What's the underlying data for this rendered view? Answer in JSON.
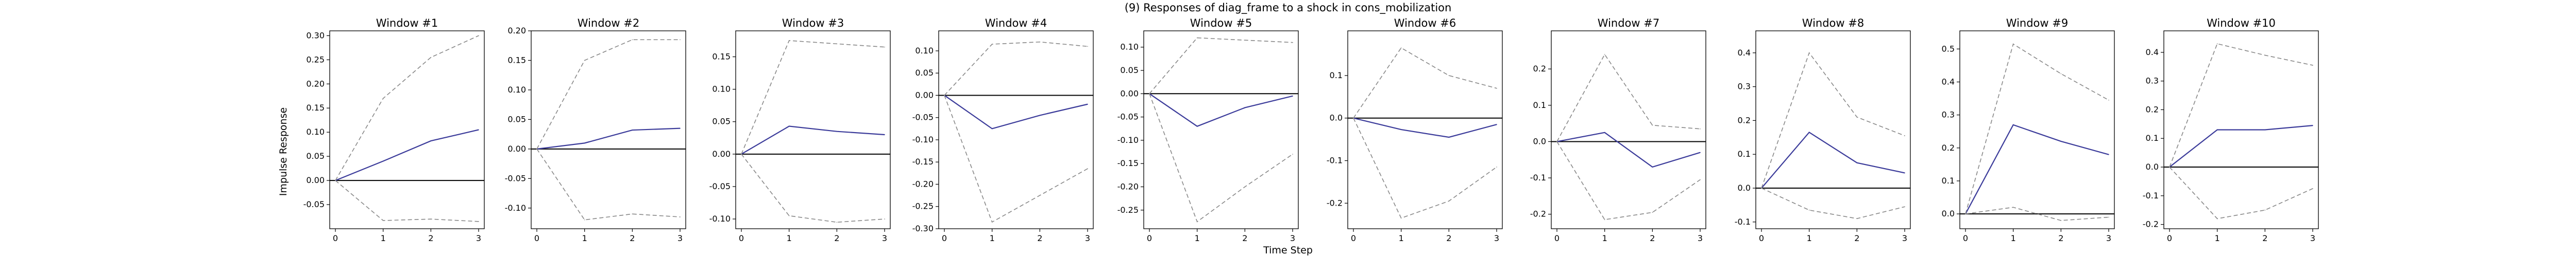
{
  "figure": {
    "title": "(9) Responses of diag_frame to a shock in cons_mobilization",
    "xlabel": "Time Step",
    "ylabel": "Impulse Response"
  },
  "colors": {
    "response": "#3b3b9a",
    "bands": "#888888",
    "zero_line": "#000000",
    "frame": "#000000"
  },
  "chart_data": [
    {
      "type": "line",
      "title": "Window #1",
      "x": [
        0,
        1,
        2,
        3
      ],
      "ylim": [
        -0.1,
        0.31
      ],
      "yticks": [
        "-0.05",
        "0.00",
        "0.05",
        "0.10",
        "0.15",
        "0.20",
        "0.25",
        "0.30"
      ],
      "series": [
        {
          "role": "response",
          "values": [
            0.0,
            0.04,
            0.082,
            0.105
          ]
        },
        {
          "role": "upper",
          "values": [
            0.0,
            0.17,
            0.255,
            0.3
          ]
        },
        {
          "role": "lower",
          "values": [
            0.0,
            -0.083,
            -0.08,
            -0.085
          ]
        }
      ]
    },
    {
      "type": "line",
      "title": "Window #2",
      "x": [
        0,
        1,
        2,
        3
      ],
      "ylim": [
        -0.135,
        0.2
      ],
      "yticks": [
        "-0.10",
        "-0.05",
        "0.00",
        "0.05",
        "0.10",
        "0.15",
        "0.20"
      ],
      "series": [
        {
          "role": "response",
          "values": [
            0.0,
            0.01,
            0.032,
            0.035
          ]
        },
        {
          "role": "upper",
          "values": [
            0.0,
            0.15,
            0.185,
            0.185
          ]
        },
        {
          "role": "lower",
          "values": [
            0.0,
            -0.12,
            -0.11,
            -0.115
          ]
        }
      ]
    },
    {
      "type": "line",
      "title": "Window #3",
      "x": [
        0,
        1,
        2,
        3
      ],
      "ylim": [
        -0.115,
        0.19
      ],
      "yticks": [
        "-0.10",
        "-0.05",
        "0.00",
        "0.05",
        "0.10",
        "0.15"
      ],
      "series": [
        {
          "role": "response",
          "values": [
            0.0,
            0.043,
            0.035,
            0.03
          ]
        },
        {
          "role": "upper",
          "values": [
            0.0,
            0.175,
            0.17,
            0.165
          ]
        },
        {
          "role": "lower",
          "values": [
            0.0,
            -0.095,
            -0.105,
            -0.1
          ]
        }
      ]
    },
    {
      "type": "line",
      "title": "Window #4",
      "x": [
        0,
        1,
        2,
        3
      ],
      "ylim": [
        -0.3,
        0.145
      ],
      "yticks": [
        "-0.30",
        "-0.25",
        "-0.20",
        "-0.15",
        "-0.10",
        "-0.05",
        "0.00",
        "0.05",
        "0.10"
      ],
      "series": [
        {
          "role": "response",
          "values": [
            0.0,
            -0.075,
            -0.045,
            -0.02
          ]
        },
        {
          "role": "upper",
          "values": [
            0.0,
            0.115,
            0.12,
            0.11
          ]
        },
        {
          "role": "lower",
          "values": [
            0.0,
            -0.285,
            -0.225,
            -0.165
          ]
        }
      ]
    },
    {
      "type": "line",
      "title": "Window #5",
      "x": [
        0,
        1,
        2,
        3
      ],
      "ylim": [
        -0.29,
        0.135
      ],
      "yticks": [
        "-0.25",
        "-0.20",
        "-0.15",
        "-0.10",
        "-0.05",
        "0.00",
        "0.05",
        "0.10"
      ],
      "series": [
        {
          "role": "response",
          "values": [
            0.0,
            -0.07,
            -0.03,
            -0.005
          ]
        },
        {
          "role": "upper",
          "values": [
            0.0,
            0.12,
            0.115,
            0.11
          ]
        },
        {
          "role": "lower",
          "values": [
            0.0,
            -0.275,
            -0.2,
            -0.13
          ]
        }
      ]
    },
    {
      "type": "line",
      "title": "Window #6",
      "x": [
        0,
        1,
        2,
        3
      ],
      "ylim": [
        -0.26,
        0.205
      ],
      "yticks": [
        "-0.2",
        "-0.1",
        "0.0",
        "0.1"
      ],
      "series": [
        {
          "role": "response",
          "values": [
            0.0,
            -0.027,
            -0.045,
            -0.015
          ]
        },
        {
          "role": "upper",
          "values": [
            0.0,
            0.165,
            0.1,
            0.07
          ]
        },
        {
          "role": "lower",
          "values": [
            0.0,
            -0.235,
            -0.195,
            -0.115
          ]
        }
      ]
    },
    {
      "type": "line",
      "title": "Window #7",
      "x": [
        0,
        1,
        2,
        3
      ],
      "ylim": [
        -0.24,
        0.305
      ],
      "yticks": [
        "-0.2",
        "-0.1",
        "0.0",
        "0.1",
        "0.2"
      ],
      "series": [
        {
          "role": "response",
          "values": [
            0.0,
            0.025,
            -0.07,
            -0.03
          ]
        },
        {
          "role": "upper",
          "values": [
            0.0,
            0.24,
            0.045,
            0.035
          ]
        },
        {
          "role": "lower",
          "values": [
            0.0,
            -0.215,
            -0.195,
            -0.105
          ]
        }
      ]
    },
    {
      "type": "line",
      "title": "Window #8",
      "x": [
        0,
        1,
        2,
        3
      ],
      "ylim": [
        -0.12,
        0.465
      ],
      "yticks": [
        "-0.1",
        "0.0",
        "0.1",
        "0.2",
        "0.3",
        "0.4"
      ],
      "series": [
        {
          "role": "response",
          "values": [
            0.0,
            0.165,
            0.075,
            0.045
          ]
        },
        {
          "role": "upper",
          "values": [
            0.0,
            0.4,
            0.21,
            0.155
          ]
        },
        {
          "role": "lower",
          "values": [
            0.0,
            -0.065,
            -0.09,
            -0.055
          ]
        }
      ]
    },
    {
      "type": "line",
      "title": "Window #9",
      "x": [
        0,
        1,
        2,
        3
      ],
      "ylim": [
        -0.045,
        0.555
      ],
      "yticks": [
        "0.0",
        "0.1",
        "0.2",
        "0.3",
        "0.4",
        "0.5"
      ],
      "series": [
        {
          "role": "response",
          "values": [
            0.0,
            0.27,
            0.22,
            0.18
          ]
        },
        {
          "role": "upper",
          "values": [
            0.0,
            0.515,
            0.425,
            0.345
          ]
        },
        {
          "role": "lower",
          "values": [
            0.0,
            0.02,
            -0.02,
            -0.01
          ]
        }
      ]
    },
    {
      "type": "line",
      "title": "Window #10",
      "x": [
        0,
        1,
        2,
        3
      ],
      "ylim": [
        -0.215,
        0.475
      ],
      "yticks": [
        "-0.2",
        "-0.1",
        "0.0",
        "0.1",
        "0.2",
        "0.3",
        "0.4"
      ],
      "series": [
        {
          "role": "response",
          "values": [
            0.0,
            0.13,
            0.13,
            0.145
          ]
        },
        {
          "role": "upper",
          "values": [
            0.0,
            0.43,
            0.39,
            0.355
          ]
        },
        {
          "role": "lower",
          "values": [
            0.0,
            -0.18,
            -0.15,
            -0.075
          ]
        }
      ]
    }
  ]
}
